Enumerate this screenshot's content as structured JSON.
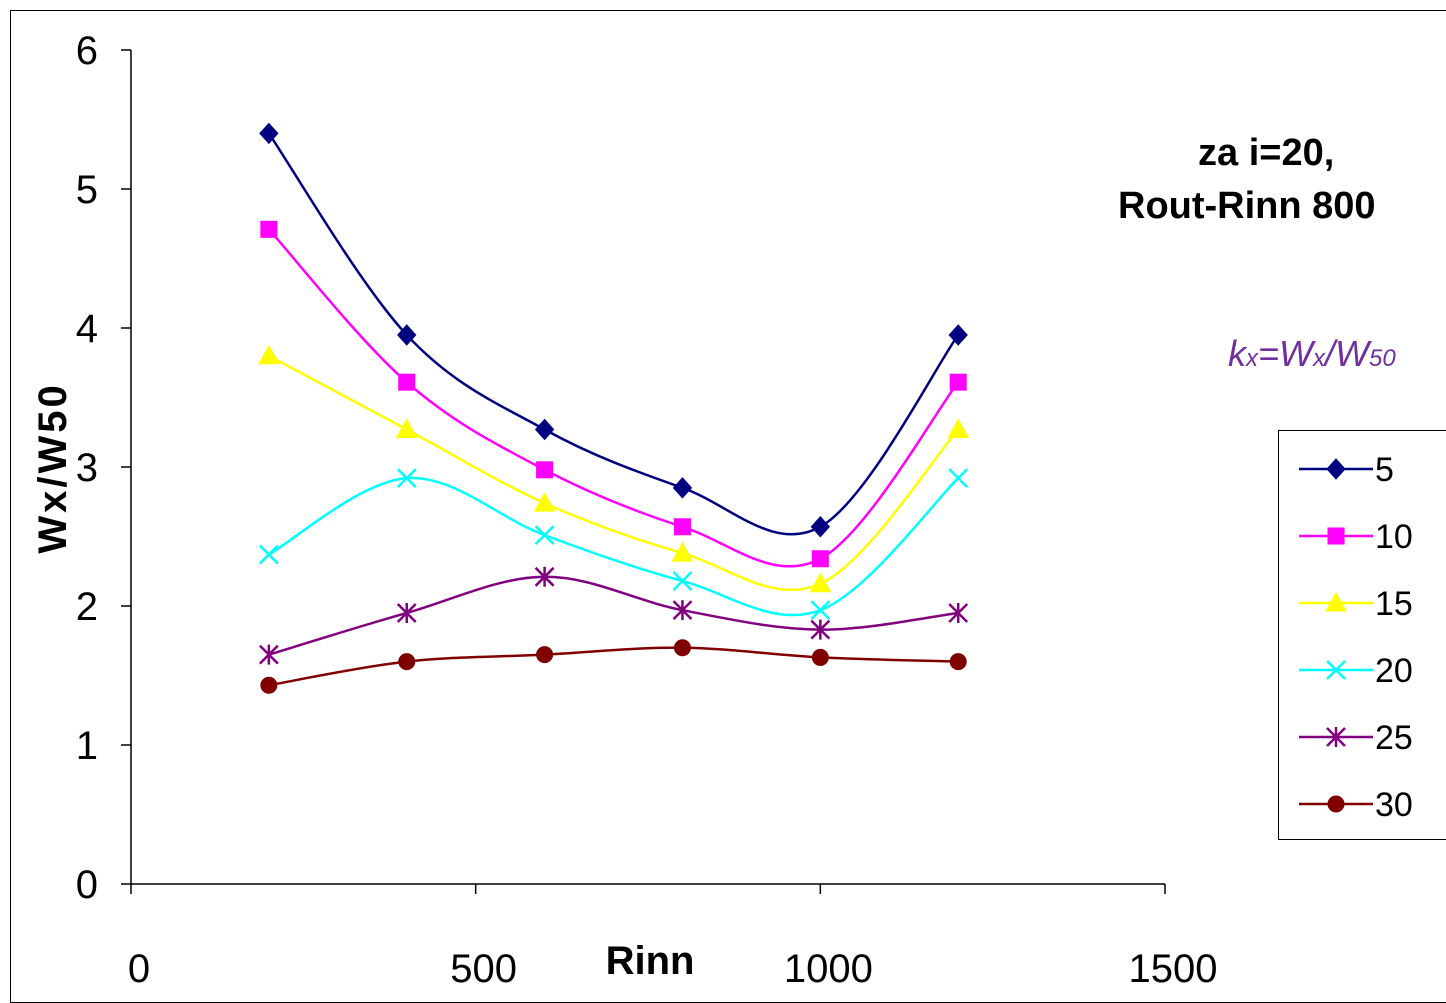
{
  "chart_data": {
    "type": "line",
    "title": "",
    "xlabel": "Rinn",
    "ylabel": "Wx/W50",
    "xlim": [
      0,
      1500
    ],
    "ylim": [
      0,
      6
    ],
    "xticks": [
      0,
      500,
      1000,
      1500
    ],
    "yticks": [
      0,
      1,
      2,
      3,
      4,
      5,
      6
    ],
    "grid": false,
    "legend": "right",
    "x": [
      200,
      400,
      600,
      800,
      1000,
      1200
    ],
    "series": [
      {
        "name": "5",
        "values": [
          5.4,
          3.95,
          3.27,
          2.85,
          2.57,
          3.95
        ],
        "color": "#000080",
        "marker": "diamond"
      },
      {
        "name": "10",
        "values": [
          4.71,
          3.61,
          2.98,
          2.57,
          2.34,
          3.61
        ],
        "color": "#ff00ff",
        "marker": "square"
      },
      {
        "name": "15",
        "values": [
          3.8,
          3.27,
          2.74,
          2.38,
          2.16,
          3.27
        ],
        "color": "#ffff00",
        "marker": "triangle"
      },
      {
        "name": "20",
        "values": [
          2.37,
          2.92,
          2.51,
          2.18,
          1.97,
          2.92
        ],
        "color": "#00ffff",
        "marker": "x"
      },
      {
        "name": "25",
        "values": [
          1.65,
          1.95,
          2.21,
          1.97,
          1.83,
          1.95
        ],
        "color": "#800080",
        "marker": "star"
      },
      {
        "name": "30",
        "values": [
          1.43,
          1.6,
          1.65,
          1.7,
          1.63,
          1.6
        ],
        "color": "#800000",
        "marker": "circle"
      }
    ],
    "annotations": [
      "za i=20,",
      "Rout-Rinn 800",
      "kx=Wx/W50"
    ]
  },
  "annotations": {
    "line1": "za i=20,",
    "line2": "Rout-Rinn 800",
    "formula_k": "k",
    "formula_ksub": "x",
    "formula_eq": "=W",
    "formula_wsub": "x",
    "formula_div": "/W",
    "formula_50": "50"
  }
}
